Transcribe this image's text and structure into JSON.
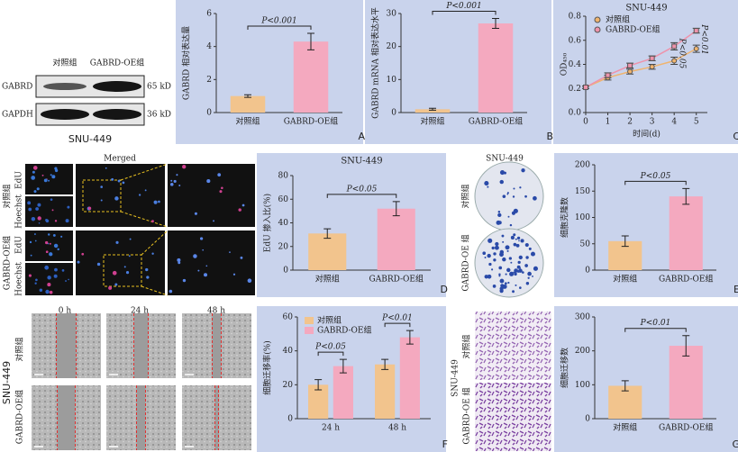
{
  "chart_data": [
    {
      "type": "bar",
      "ylabel": "GABRD 相对表达量",
      "categories": [
        "对照组",
        "GABRD-OE组"
      ],
      "values": [
        1.0,
        4.3
      ],
      "errors": [
        0.08,
        0.5
      ],
      "colors": [
        "#f2c48d",
        "#f4a9bf"
      ],
      "ylim": [
        0,
        6
      ],
      "yticks": [
        0,
        2,
        4,
        6
      ],
      "annotations": [
        "P<0.001"
      ],
      "panel_label": "A"
    },
    {
      "type": "bar",
      "ylabel": "GABRD mRNA 相对表达水平",
      "categories": [
        "对照组",
        "GABRD-OE组"
      ],
      "values": [
        1.0,
        27
      ],
      "errors": [
        0.3,
        1.5
      ],
      "colors": [
        "#f2c48d",
        "#f4a9bf"
      ],
      "ylim": [
        0,
        30
      ],
      "yticks": [
        0,
        10,
        20,
        30
      ],
      "annotations": [
        "P<0.001"
      ],
      "panel_label": "B"
    },
    {
      "type": "line",
      "title": "SNU-449",
      "ylabel": "OD₄₅₀",
      "xlabel": "时间(d)",
      "x": [
        0,
        1,
        2,
        3,
        4,
        5
      ],
      "series": [
        {
          "name": "对照组",
          "color": "#f0b46e",
          "values": [
            0.21,
            0.29,
            0.34,
            0.38,
            0.43,
            0.53
          ],
          "errors": [
            0.01,
            0.02,
            0.02,
            0.02,
            0.03,
            0.03
          ]
        },
        {
          "name": "GABRD-OE组",
          "color": "#ee93ab",
          "values": [
            0.21,
            0.31,
            0.39,
            0.45,
            0.55,
            0.68
          ],
          "errors": [
            0.01,
            0.02,
            0.02,
            0.02,
            0.03,
            0.02
          ]
        }
      ],
      "xlim": [
        0,
        5.5
      ],
      "xticks": [
        0,
        1,
        2,
        3,
        4,
        5
      ],
      "ylim": [
        0,
        0.8
      ],
      "yticks": [
        {
          "value": 0,
          "label": "0.0"
        },
        0.2,
        0.4,
        0.6,
        0.8
      ],
      "annotations": [
        "P<0.05",
        "P<0.01"
      ],
      "legend": "upper left",
      "panel_label": "C"
    },
    {
      "type": "bar",
      "title": "SNU-449",
      "ylabel": "EdU 掺入比(%)",
      "categories": [
        "对照组",
        "GABRD-OE组"
      ],
      "values": [
        31,
        52
      ],
      "errors": [
        4,
        6
      ],
      "colors": [
        "#f2c48d",
        "#f4a9bf"
      ],
      "ylim": [
        0,
        80
      ],
      "yticks": [
        0,
        20,
        40,
        60,
        80
      ],
      "annotations": [
        "P<0.05"
      ],
      "panel_label": "D"
    },
    {
      "type": "bar",
      "ylabel": "细胞克隆数",
      "categories": [
        "对照组",
        "GABRD-OE组"
      ],
      "values": [
        55,
        140
      ],
      "errors": [
        10,
        15
      ],
      "colors": [
        "#f2c48d",
        "#f4a9bf"
      ],
      "ylim": [
        0,
        200
      ],
      "yticks": [
        0,
        50,
        100,
        150,
        200
      ],
      "annotations": [
        "P<0.05"
      ],
      "panel_label": "E"
    },
    {
      "type": "grouped_bar",
      "ylabel": "细胞迁移率(%)",
      "categories": [
        "24 h",
        "48 h"
      ],
      "series": [
        {
          "name": "对照组",
          "color": "#f2c48d",
          "values": [
            20,
            32
          ],
          "errors": [
            3,
            3
          ]
        },
        {
          "name": "GABRD-OE组",
          "color": "#f4a9bf",
          "values": [
            31,
            48
          ],
          "errors": [
            4,
            4
          ]
        }
      ],
      "ylim": [
        0,
        60
      ],
      "yticks": [
        0,
        20,
        40,
        60
      ],
      "annotations": [
        "P<0.05",
        "P<0.01"
      ],
      "legend": "upper left",
      "panel_label": "F"
    },
    {
      "type": "bar",
      "ylabel": "细胞迁移数",
      "categories": [
        "对照组",
        "GABRD-OE组"
      ],
      "values": [
        97,
        215
      ],
      "errors": [
        15,
        30
      ],
      "colors": [
        "#f2c48d",
        "#f4a9bf"
      ],
      "ylim": [
        0,
        300
      ],
      "yticks": [
        0,
        100,
        200,
        300
      ],
      "annotations": [
        "P<0.01"
      ],
      "panel_label": "G"
    }
  ],
  "blot": {
    "groups": [
      "对照组",
      "GABRD-OE组"
    ],
    "proteins": [
      "GABRD",
      "GAPDH"
    ],
    "sizes": [
      "65 kD",
      "36 kD"
    ],
    "cell_line": "SNU-449"
  },
  "edu": {
    "merged": "Merged",
    "groups": [
      "对照组",
      "GABRD-OE组"
    ],
    "stains": [
      "EdU",
      "Hoechst"
    ]
  },
  "colony": {
    "cell_line": "SNU-449",
    "groups": [
      "对照组",
      "GABRD-OE 组"
    ]
  },
  "wound": {
    "times": [
      "0 h",
      "24 h",
      "48 h"
    ],
    "cell_line": "SNU-449",
    "groups": [
      "对照组",
      "GABRD-OE组"
    ]
  },
  "transwell": {
    "cell_line": "SNU-449",
    "groups": [
      "对照组",
      "GABRD-OE 组"
    ]
  }
}
